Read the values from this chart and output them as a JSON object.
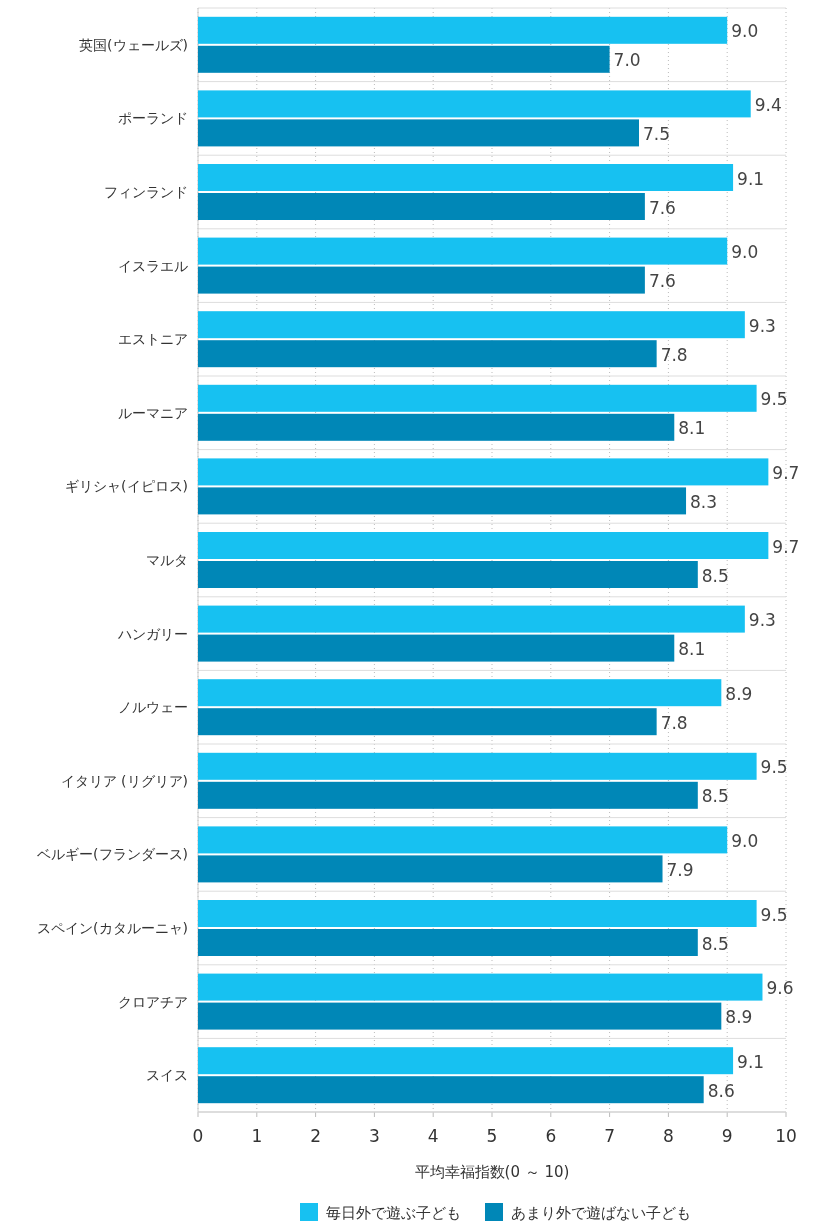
{
  "chart_data": {
    "type": "bar",
    "orientation": "horizontal",
    "xlabel": "平均幸福指数(0 ～ 10)",
    "categories": [
      "英国(ウェールズ)",
      "ポーランド",
      "フィンランド",
      "イスラエル",
      "エストニア",
      "ルーマニア",
      "ギリシャ(イピロス)",
      "マルタ",
      "ハンガリー",
      "ノルウェー",
      "イタリア (リグリア)",
      "ベルギー(フランダース)",
      "スペイン(カタルーニャ)",
      "クロアチア",
      "スイス"
    ],
    "series": [
      {
        "name": "毎日外で遊ぶ子ども",
        "color": "#17c1f1",
        "values": [
          9.0,
          9.4,
          9.1,
          9.0,
          9.3,
          9.5,
          9.7,
          9.7,
          9.3,
          8.9,
          9.5,
          9.0,
          9.5,
          9.6,
          9.1
        ],
        "value_labels": [
          "9.0",
          "9.4",
          "9.1",
          "9.0",
          "9.3",
          "9.5",
          "9.7",
          "9.7",
          "9.3",
          "8.9",
          "9.5",
          "9.0",
          "9.5",
          "9.6",
          "9.1"
        ]
      },
      {
        "name": "あまり外で遊ばない子ども",
        "color": "#0087b7",
        "values": [
          7.0,
          7.5,
          7.6,
          7.6,
          7.8,
          8.1,
          8.3,
          8.5,
          8.1,
          7.8,
          8.5,
          7.9,
          8.5,
          8.9,
          8.6
        ],
        "value_labels": [
          "7.0",
          "7.5",
          "7.6",
          "7.6",
          "7.8",
          "8.1",
          "8.3",
          "8.5",
          "8.1",
          "7.8",
          "8.5",
          "7.9",
          "8.5",
          "8.9",
          "8.6"
        ]
      }
    ],
    "xlim": [
      0,
      10
    ],
    "xticks": [
      0,
      1,
      2,
      3,
      4,
      5,
      6,
      7,
      8,
      9,
      10
    ],
    "grid": "x",
    "legend": "bottom"
  }
}
